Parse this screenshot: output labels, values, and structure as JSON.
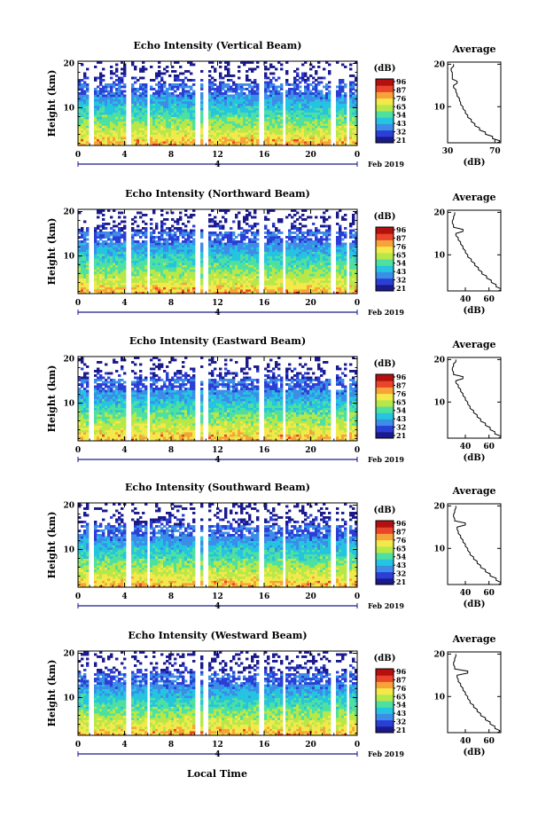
{
  "chart_data": {
    "type": "heatmap",
    "x_ticks": [
      "0",
      "4",
      "8",
      "12",
      "16",
      "20",
      "0"
    ],
    "x_values": [
      0,
      4,
      8,
      12,
      16,
      20,
      24
    ],
    "y_ticks": [
      "20",
      "10"
    ],
    "y_values": [
      20,
      10
    ],
    "ylim": [
      1.5,
      20.5
    ],
    "xlim": [
      0,
      24
    ],
    "ylabel": "Height (km)",
    "xlabel": "Local Time",
    "date_day": "4",
    "date_label": "Feb 2019",
    "colorbar_unit": "(dB)",
    "colorbar_ticks": [
      "96",
      "87",
      "76",
      "65",
      "54",
      "43",
      "32",
      "21"
    ],
    "colormap": [
      "#1a1a8c",
      "#2b3fd6",
      "#3b8de8",
      "#25c4e0",
      "#4fe0a0",
      "#b6e84a",
      "#f3e94a",
      "#f7a33a",
      "#e8452b",
      "#b51010"
    ],
    "data_gaps_hours": [
      [
        1.0,
        1.3
      ],
      [
        4.1,
        4.5
      ],
      [
        5.9,
        6.2
      ],
      [
        10.0,
        10.4
      ],
      [
        10.7,
        11.1
      ],
      [
        15.5,
        15.9
      ],
      [
        17.5,
        17.8
      ],
      [
        21.8,
        22.1
      ],
      [
        23.0,
        23.3
      ]
    ],
    "panels": [
      {
        "title": "Echo Intensity (Vertical Beam)",
        "average": {
          "title": "Average",
          "unit": "(dB)",
          "xlim": [
            30,
            75
          ],
          "xticks": [
            30,
            70
          ],
          "xtick_labels": [
            "30",
            "70"
          ],
          "profile_height_km": [
            1.5,
            2,
            3,
            4,
            5,
            6,
            7,
            8,
            9,
            10,
            11,
            12,
            13,
            14,
            15,
            16,
            17,
            18,
            19,
            20
          ],
          "profile_db": [
            72,
            74,
            68,
            62,
            57,
            53,
            50,
            47,
            45,
            43,
            41,
            40,
            38,
            37,
            35,
            38,
            34,
            34,
            33,
            35
          ]
        }
      },
      {
        "title": "Echo Intensity (Northward Beam)",
        "average": {
          "title": "Average",
          "unit": "(dB)",
          "xlim": [
            25,
            70
          ],
          "xticks": [
            40,
            60
          ],
          "xtick_labels": [
            "40",
            "60"
          ],
          "profile_height_km": [
            1.5,
            2,
            3,
            4,
            5,
            6,
            7,
            8,
            9,
            10,
            11,
            12,
            13,
            14,
            15,
            16,
            17,
            18,
            19,
            20
          ],
          "profile_db": [
            68,
            70,
            66,
            62,
            58,
            54,
            51,
            48,
            45,
            42,
            40,
            38,
            36,
            34,
            32,
            38,
            30,
            29,
            30,
            31
          ]
        }
      },
      {
        "title": "Echo Intensity (Eastward Beam)",
        "average": {
          "title": "Average",
          "unit": "(dB)",
          "xlim": [
            25,
            70
          ],
          "xticks": [
            40,
            60
          ],
          "xtick_labels": [
            "40",
            "60"
          ],
          "profile_height_km": [
            1.5,
            2,
            3,
            4,
            5,
            6,
            7,
            8,
            9,
            10,
            11,
            12,
            13,
            14,
            15,
            16,
            17,
            18,
            19,
            20
          ],
          "profile_db": [
            68,
            70,
            65,
            61,
            57,
            53,
            50,
            47,
            44,
            42,
            40,
            38,
            36,
            34,
            32,
            38,
            30,
            29,
            30,
            32
          ]
        }
      },
      {
        "title": "Echo Intensity (Southward Beam)",
        "average": {
          "title": "Average",
          "unit": "(dB)",
          "xlim": [
            25,
            70
          ],
          "xticks": [
            40,
            60
          ],
          "xtick_labels": [
            "40",
            "60"
          ],
          "profile_height_km": [
            1.5,
            2,
            3,
            4,
            5,
            6,
            7,
            8,
            9,
            10,
            11,
            12,
            13,
            14,
            15,
            16,
            17,
            18,
            19,
            20
          ],
          "profile_db": [
            68,
            70,
            66,
            61,
            57,
            53,
            50,
            47,
            44,
            42,
            40,
            38,
            36,
            34,
            33,
            40,
            31,
            30,
            31,
            32
          ]
        }
      },
      {
        "title": "Echo Intensity (Westward Beam)",
        "average": {
          "title": "Average",
          "unit": "(dB)",
          "xlim": [
            25,
            70
          ],
          "xticks": [
            40,
            60
          ],
          "xtick_labels": [
            "40",
            "60"
          ],
          "profile_height_km": [
            1.5,
            2,
            3,
            4,
            5,
            6,
            7,
            8,
            9,
            10,
            11,
            12,
            13,
            14,
            15,
            16,
            17,
            18,
            19,
            20
          ],
          "profile_db": [
            67,
            69,
            65,
            61,
            57,
            53,
            50,
            47,
            44,
            42,
            40,
            38,
            36,
            34,
            33,
            42,
            31,
            30,
            31,
            32
          ]
        }
      }
    ]
  }
}
